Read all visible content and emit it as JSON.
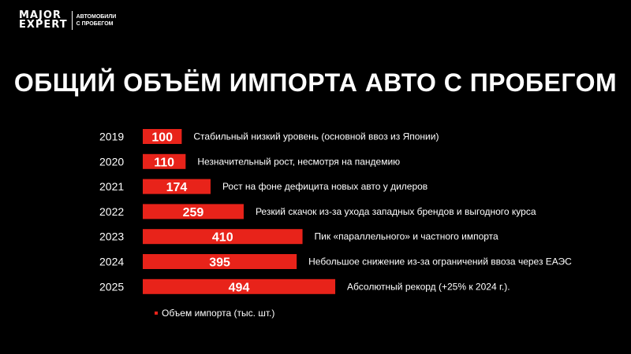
{
  "logo": {
    "line1": "MAJOR",
    "line2": "EXPERT",
    "sub1": "АВТОМОБИЛИ",
    "sub2": "С ПРОБЕГОМ"
  },
  "chart_data": {
    "type": "bar",
    "orientation": "horizontal",
    "title": "ОБЩИЙ ОБЪЁМ ИМПОРТА АВТО С ПРОБЕГОМ",
    "categories": [
      "2019",
      "2020",
      "2021",
      "2022",
      "2023",
      "2024",
      "2025"
    ],
    "series": [
      {
        "name": "Объем импорта (тыс. шт.)",
        "values": [
          100,
          110,
          174,
          259,
          410,
          395,
          494
        ]
      }
    ],
    "annotations": [
      "Стабильный низкий уровень (основной ввоз из Японии)",
      "Незначительный рост, несмотря на пандемию",
      "Рост на фоне дефицита новых авто у дилеров",
      "Резкий скачок из-за ухода западных брендов и выгодного курса",
      "Пик «параллельного» и частного импорта",
      "Небольшое снижение из-за ограничений ввоза через ЕАЭС",
      "Абсолютный рекорд (+25% к 2024 г.)."
    ],
    "legend": "bottom-left",
    "grid": false,
    "bar_color": "#e8231a"
  }
}
